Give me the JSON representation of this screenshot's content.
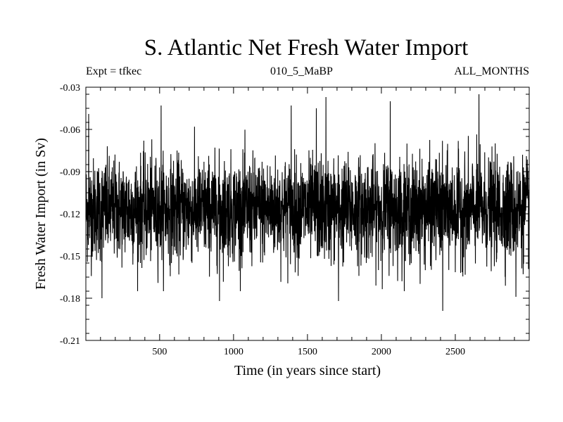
{
  "chart_data": {
    "type": "line",
    "title": "S. Atlantic Net Fresh Water Import",
    "subtitle_left": "Expt = tfkec",
    "subtitle_center": "010_5_MaBP",
    "subtitle_right": "ALL_MONTHS",
    "xlabel": "Time (in years since start)",
    "ylabel": "Fresh Water Import (in Sv)",
    "xlim": [
      1,
      3000
    ],
    "ylim": [
      -0.21,
      -0.03
    ],
    "xticks": [
      500,
      1000,
      1500,
      2000,
      2500
    ],
    "yticks": [
      -0.21,
      -0.18,
      -0.15,
      -0.12,
      -0.09,
      -0.06,
      -0.03
    ],
    "ytick_labels": [
      "-0.21",
      "-0.18",
      "-0.15",
      "-0.12",
      "-0.09",
      "-0.06",
      "-0.03"
    ],
    "grid": false,
    "series": [
      {
        "color": "#000000",
        "mean": -0.117,
        "std": 0.018,
        "n_points": 3000,
        "extremes": [
          {
            "x": 20,
            "y": -0.049
          },
          {
            "x": 110,
            "y": -0.18
          },
          {
            "x": 510,
            "y": -0.043
          },
          {
            "x": 905,
            "y": -0.182
          },
          {
            "x": 1390,
            "y": -0.043
          },
          {
            "x": 1560,
            "y": -0.045
          },
          {
            "x": 1625,
            "y": -0.037
          },
          {
            "x": 1710,
            "y": -0.182
          },
          {
            "x": 2060,
            "y": -0.04
          },
          {
            "x": 2415,
            "y": -0.189
          },
          {
            "x": 2660,
            "y": -0.035
          },
          {
            "x": 2910,
            "y": -0.179
          }
        ]
      }
    ]
  }
}
